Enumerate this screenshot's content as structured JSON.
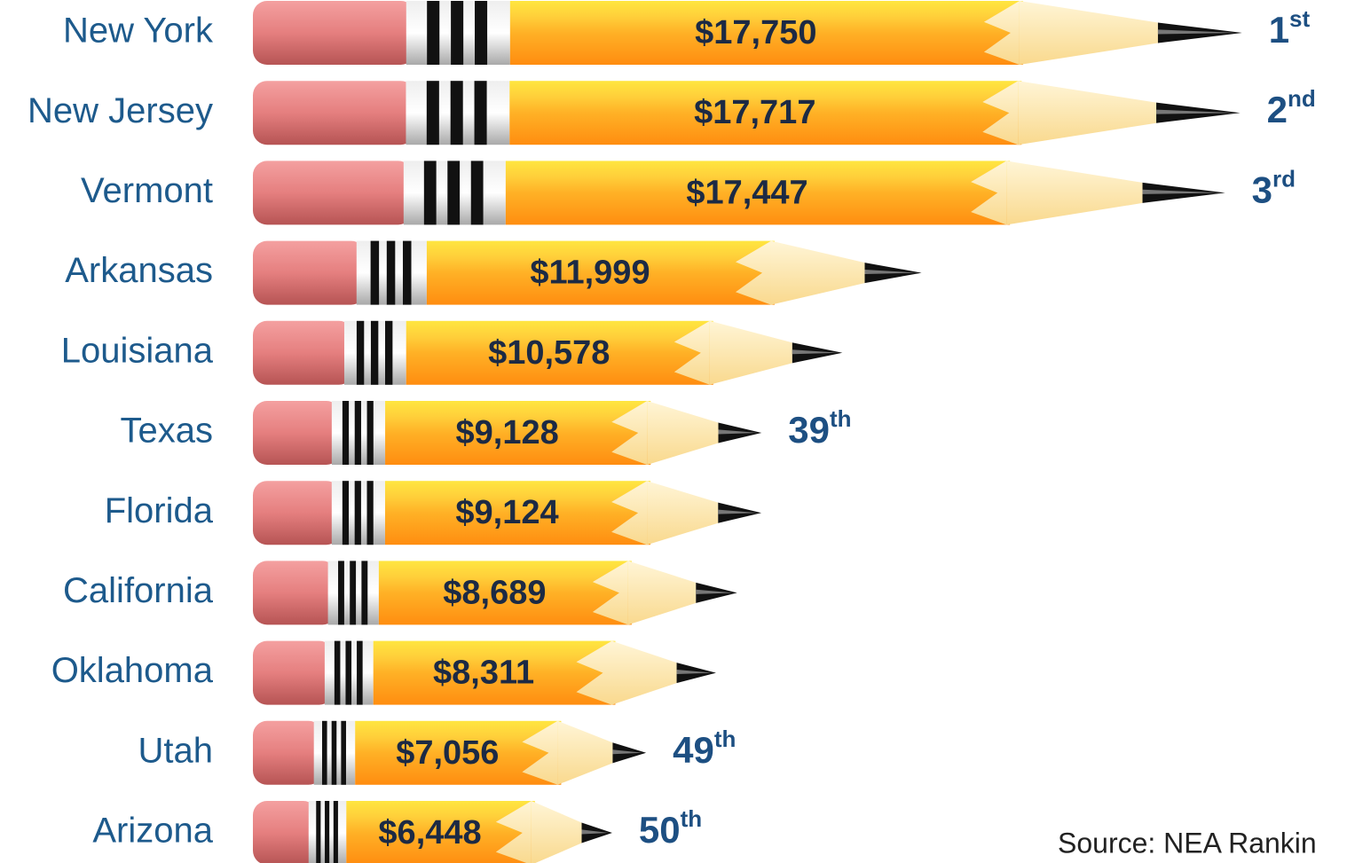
{
  "chart_data": {
    "type": "bar",
    "orientation": "horizontal",
    "categories": [
      "New York",
      "New Jersey",
      "Vermont",
      "Arkansas",
      "Louisiana",
      "Texas",
      "Florida",
      "California",
      "Oklahoma",
      "Utah",
      "Arizona"
    ],
    "values": [
      17750,
      17717,
      17447,
      11999,
      10578,
      9128,
      9124,
      8689,
      8311,
      7056,
      6448
    ],
    "value_labels": [
      "$17,750",
      "$17,717",
      "$17,447",
      "$11,999",
      "$10,578",
      "$9,128",
      "$9,124",
      "$8,689",
      "$8,311",
      "$7,056",
      "$6,448"
    ],
    "ranks": [
      "1st",
      "2nd",
      "3rd",
      null,
      null,
      "39th",
      null,
      null,
      null,
      "49th",
      "50th"
    ],
    "xlim": [
      0,
      20000
    ],
    "source": "Source: NEA Rankin"
  }
}
